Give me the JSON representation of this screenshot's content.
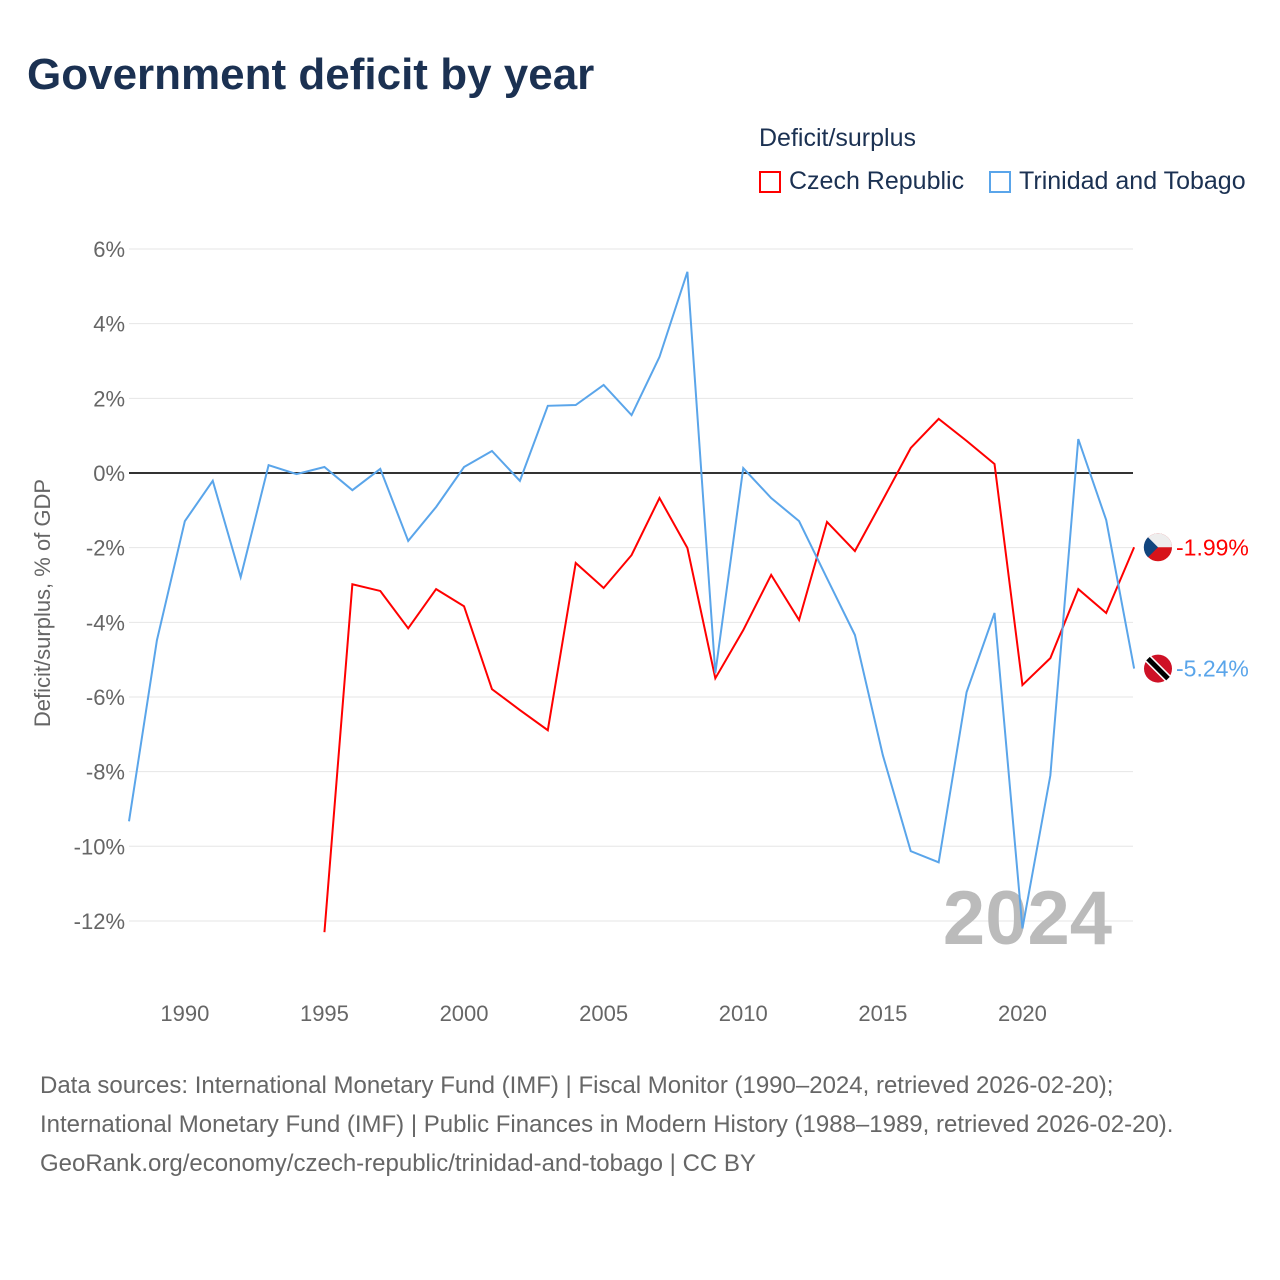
{
  "title": "Government deficit by year",
  "legend": {
    "title": "Deficit/surplus",
    "items": [
      "Czech Republic",
      "Trinidad and Tobago"
    ]
  },
  "colors": {
    "czech": "#ff0000",
    "trinidad": "#5aa5ea"
  },
  "year_watermark": "2024",
  "footer": {
    "sources": "Data sources: International Monetary Fund (IMF) | Fiscal Monitor (1990–2024, retrieved 2026-02-20); International Monetary Fund (IMF) | Public Finances in Modern History (1988–1989, retrieved 2026-02-20).",
    "link": "GeoRank.org/economy/czech-republic/trinidad-and-tobago | CC BY"
  },
  "chart_data": {
    "type": "line",
    "title": "Government deficit by year",
    "ylabel": "Deficit/surplus, % of GDP",
    "xlabel": "",
    "xlim": [
      1988,
      2024
    ],
    "ylim": [
      -12,
      6
    ],
    "xticks": [
      1990,
      1995,
      2000,
      2005,
      2010,
      2015,
      2020
    ],
    "yticks": [
      6,
      4,
      2,
      0,
      -2,
      -4,
      -6,
      -8,
      -10,
      -12
    ],
    "ytick_labels": [
      "6%",
      "4%",
      "2%",
      "0%",
      "-2%",
      "-4%",
      "-6%",
      "-8%",
      "-10%",
      "-12%"
    ],
    "grid": true,
    "legend_position": "top-right",
    "series": [
      {
        "name": "Czech Republic",
        "end_label": "-1.99%",
        "x": [
          1995,
          1996,
          1997,
          1998,
          1999,
          2000,
          2001,
          2002,
          2003,
          2004,
          2005,
          2006,
          2007,
          2008,
          2009,
          2010,
          2011,
          2012,
          2013,
          2014,
          2015,
          2016,
          2017,
          2018,
          2019,
          2020,
          2021,
          2022,
          2023,
          2024
        ],
        "values": [
          -12.3,
          -2.98,
          -3.16,
          -4.16,
          -3.11,
          -3.57,
          -5.79,
          -6.35,
          -6.89,
          -2.41,
          -3.08,
          -2.2,
          -0.67,
          -2.01,
          -5.5,
          -4.21,
          -2.73,
          -3.94,
          -1.31,
          -2.09,
          -0.72,
          0.67,
          1.45,
          0.86,
          0.24,
          -5.68,
          -4.96,
          -3.11,
          -3.75,
          -1.99
        ]
      },
      {
        "name": "Trinidad and Tobago",
        "end_label": "-5.24%",
        "x": [
          1988,
          1989,
          1990,
          1991,
          1992,
          1993,
          1994,
          1995,
          1996,
          1997,
          1998,
          1999,
          2000,
          2001,
          2002,
          2003,
          2004,
          2005,
          2006,
          2007,
          2008,
          2009,
          2010,
          2011,
          2012,
          2013,
          2014,
          2015,
          2016,
          2017,
          2018,
          2019,
          2020,
          2021,
          2022,
          2023,
          2024
        ],
        "values": [
          -9.33,
          -4.48,
          -1.29,
          -0.21,
          -2.79,
          0.21,
          -0.03,
          0.16,
          -0.46,
          0.11,
          -1.82,
          -0.91,
          0.16,
          0.59,
          -0.21,
          1.8,
          1.82,
          2.36,
          1.55,
          3.11,
          5.39,
          -5.36,
          0.13,
          -0.67,
          -1.29,
          -2.82,
          -4.34,
          -7.56,
          -10.13,
          -10.43,
          -5.87,
          -3.75,
          -12.2,
          -8.1,
          0.91,
          -1.26,
          -5.24
        ]
      }
    ]
  }
}
